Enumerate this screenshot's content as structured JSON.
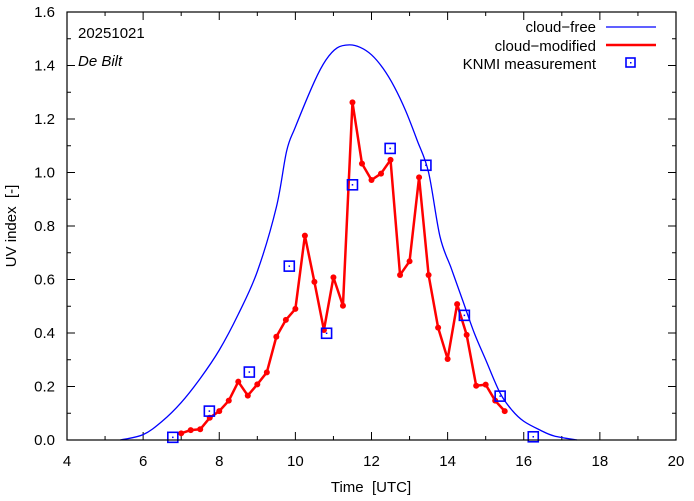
{
  "chart_data": {
    "type": "line",
    "title": "",
    "annotations": {
      "date": "20251021",
      "location": "De Bilt"
    },
    "xlabel": "Time  [UTC]",
    "ylabel": "UV index  [-]",
    "xlim": [
      4,
      20
    ],
    "ylim": [
      0,
      1.6
    ],
    "x_ticks": [
      4,
      6,
      8,
      10,
      12,
      14,
      16,
      18,
      20
    ],
    "x_tick_labels": [
      "4",
      "6",
      "8",
      "10",
      "12",
      "14",
      "16",
      "18",
      "20"
    ],
    "y_ticks": [
      0,
      0.2,
      0.4,
      0.6,
      0.8,
      1.0,
      1.2,
      1.4,
      1.6
    ],
    "y_tick_labels": [
      "0.0",
      "0.2",
      "0.4",
      "0.6",
      "0.8",
      "1.0",
      "1.2",
      "1.4",
      "1.6"
    ],
    "grid": false,
    "legend_position": "top-right",
    "colors": {
      "cloud_free": "#0000ff",
      "cloud_modified": "#ff0000",
      "measurement": "#0000ff"
    },
    "series": [
      {
        "name": "cloud−free",
        "style": "line",
        "x": [
          5.4,
          6.0,
          6.5,
          7.0,
          7.5,
          8.0,
          8.5,
          9.0,
          9.5,
          9.77,
          10.0,
          10.5,
          10.8,
          11.1,
          11.42,
          11.7,
          12.0,
          12.3,
          12.6,
          12.9,
          13.2,
          13.5,
          13.8,
          14.1,
          14.4,
          14.7,
          15.0,
          15.38,
          15.7,
          16.0,
          16.43,
          16.8,
          17.4
        ],
        "y": [
          0.0,
          0.02,
          0.07,
          0.14,
          0.23,
          0.336,
          0.47,
          0.63,
          0.87,
          1.08,
          1.17,
          1.34,
          1.42,
          1.466,
          1.477,
          1.468,
          1.44,
          1.39,
          1.32,
          1.23,
          1.12,
          1.0,
          0.76,
          0.64,
          0.52,
          0.4,
          0.3,
          0.175,
          0.11,
          0.07,
          0.037,
          0.015,
          0.0
        ]
      },
      {
        "name": "cloud−modified",
        "style": "line-points",
        "x": [
          7.0,
          7.25,
          7.5,
          7.75,
          8.0,
          8.25,
          8.5,
          8.75,
          9.0,
          9.25,
          9.5,
          9.75,
          10.0,
          10.25,
          10.5,
          10.75,
          11.0,
          11.25,
          11.5,
          11.75,
          12.0,
          12.25,
          12.5,
          12.75,
          13.0,
          13.25,
          13.5,
          13.75,
          14.0,
          14.25,
          14.5,
          14.75,
          15.0,
          15.25,
          15.5
        ],
        "y": [
          0.025,
          0.037,
          0.04,
          0.083,
          0.108,
          0.147,
          0.218,
          0.166,
          0.208,
          0.253,
          0.386,
          0.449,
          0.49,
          0.764,
          0.591,
          0.411,
          0.608,
          0.502,
          1.262,
          1.033,
          0.972,
          0.996,
          1.047,
          0.617,
          0.668,
          0.982,
          0.617,
          0.42,
          0.303,
          0.508,
          0.393,
          0.203,
          0.207,
          0.147,
          0.108
        ]
      },
      {
        "name": "KNMI measurement",
        "style": "points",
        "x": [
          6.78,
          7.74,
          8.79,
          9.84,
          10.82,
          11.5,
          12.49,
          13.43,
          14.44,
          15.38,
          16.25
        ],
        "y": [
          0.01,
          0.108,
          0.254,
          0.65,
          0.399,
          0.954,
          1.09,
          1.027,
          0.466,
          0.164,
          0.012
        ]
      }
    ]
  }
}
